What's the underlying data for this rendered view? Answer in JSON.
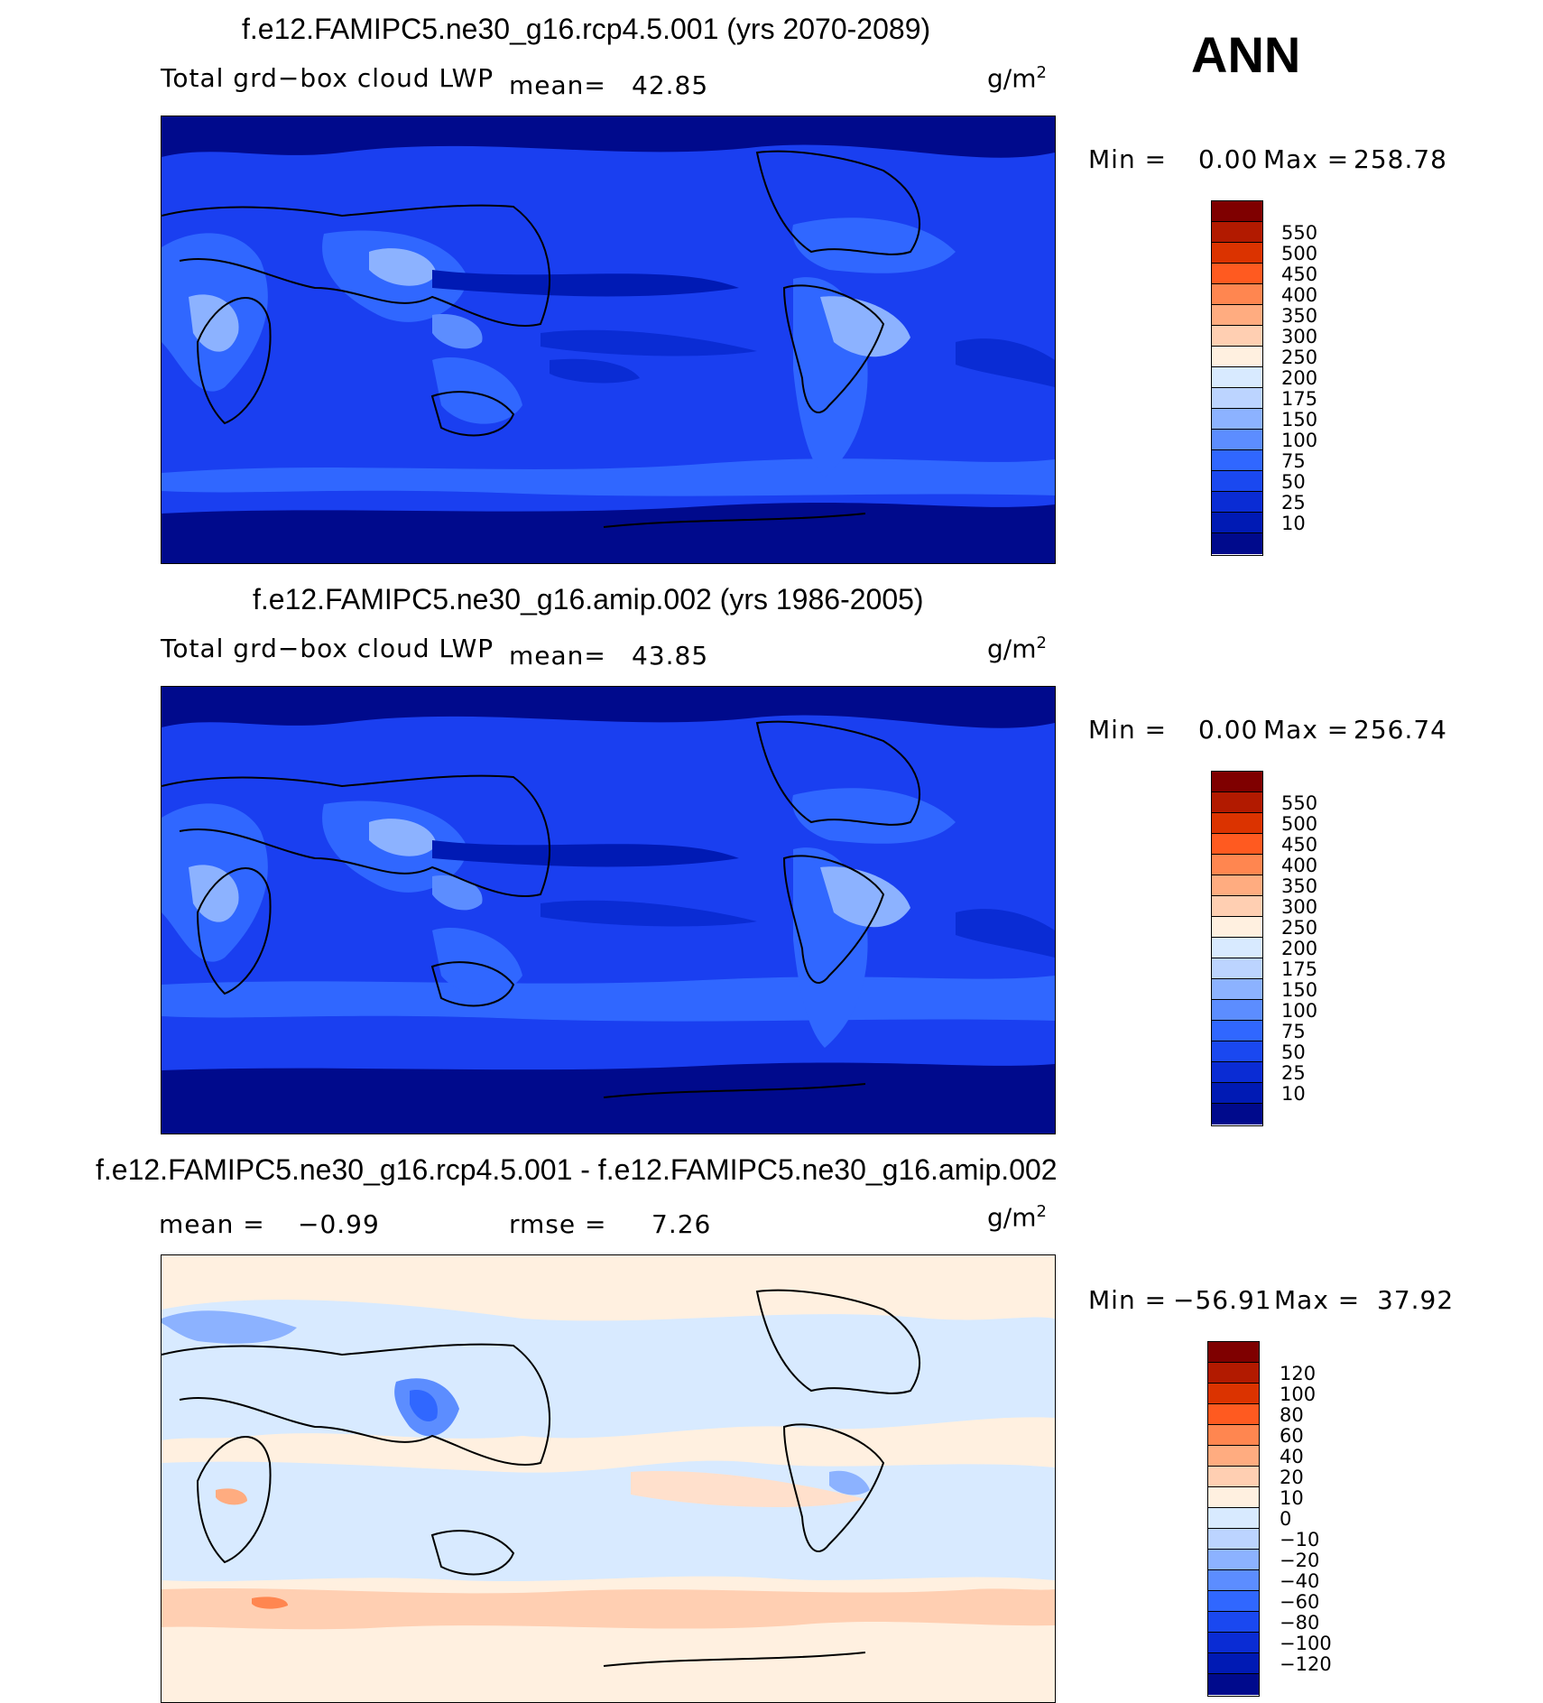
{
  "season": "ANN",
  "panels": [
    {
      "title": "f.e12.FAMIPC5.ne30_g16.rcp4.5.001 (yrs 2070-2089)",
      "variable": "Total grd−box cloud LWP",
      "stat1_label": "mean=",
      "stat1_value": "42.85",
      "stat2_label": "",
      "stat2_value": "",
      "unit": "g/m",
      "unit_exp": "2",
      "min_label": "Min =",
      "min_value": "0.00",
      "max_label": "Max =",
      "max_value": "258.78",
      "background": "#0000a0",
      "colorbar": {
        "colors": [
          "#7f0000",
          "#b21a00",
          "#db3300",
          "#ff5a20",
          "#ff8650",
          "#ffac80",
          "#ffcfb2",
          "#fff0e0",
          "#d8eaff",
          "#bcd4ff",
          "#8cb2ff",
          "#5c8dff",
          "#3067ff",
          "#1a48f0",
          "#0a2cd4",
          "#001ab4",
          "#000a8c"
        ],
        "labels": [
          "550",
          "500",
          "450",
          "400",
          "350",
          "300",
          "250",
          "200",
          "175",
          "150",
          "100",
          "75",
          "50",
          "25",
          "10"
        ]
      }
    },
    {
      "title": "f.e12.FAMIPC5.ne30_g16.amip.002 (yrs 1986-2005)",
      "variable": "Total grd−box cloud LWP",
      "stat1_label": "mean=",
      "stat1_value": "43.85",
      "stat2_label": "",
      "stat2_value": "",
      "unit": "g/m",
      "unit_exp": "2",
      "min_label": "Min =",
      "min_value": "0.00",
      "max_label": "Max =",
      "max_value": "256.74",
      "background": "#0000a0",
      "colorbar": {
        "colors": [
          "#7f0000",
          "#b21a00",
          "#db3300",
          "#ff5a20",
          "#ff8650",
          "#ffac80",
          "#ffcfb2",
          "#fff0e0",
          "#d8eaff",
          "#bcd4ff",
          "#8cb2ff",
          "#5c8dff",
          "#3067ff",
          "#1a48f0",
          "#0a2cd4",
          "#001ab4",
          "#000a8c"
        ],
        "labels": [
          "550",
          "500",
          "450",
          "400",
          "350",
          "300",
          "250",
          "200",
          "175",
          "150",
          "100",
          "75",
          "50",
          "25",
          "10"
        ]
      }
    },
    {
      "title": "f.e12.FAMIPC5.ne30_g16.rcp4.5.001 - f.e12.FAMIPC5.ne30_g16.amip.002",
      "variable": "",
      "stat1_label": "mean =",
      "stat1_value": "−0.99",
      "stat2_label": "rmse =",
      "stat2_value": "7.26",
      "unit": "g/m",
      "unit_exp": "2",
      "min_label": "Min =",
      "min_value": "−56.91",
      "max_label": "Max =",
      "max_value": "37.92",
      "background": "#ffe8da",
      "colorbar": {
        "colors": [
          "#7f0000",
          "#b21a00",
          "#db3300",
          "#ff5a20",
          "#ff8650",
          "#ffac80",
          "#ffcfb2",
          "#fff0e0",
          "#d8eaff",
          "#bcd4ff",
          "#8cb2ff",
          "#5c8dff",
          "#3067ff",
          "#1a48f0",
          "#0a2cd4",
          "#001ab4",
          "#000a8c"
        ],
        "labels": [
          "120",
          "100",
          "80",
          "60",
          "40",
          "20",
          "10",
          "0",
          "−10",
          "−20",
          "−40",
          "−60",
          "−80",
          "−100",
          "−120"
        ]
      }
    }
  ],
  "chart_data": [
    {
      "type": "heatmap",
      "title": "f.e12.FAMIPC5.ne30_g16.rcp4.5.001 (yrs 2070-2089)",
      "variable": "Total grd−box cloud LWP",
      "units": "g/m^2",
      "mean": 42.85,
      "min": 0.0,
      "max": 258.78,
      "contour_levels": [
        10,
        25,
        50,
        75,
        100,
        150,
        175,
        200,
        250,
        300,
        350,
        400,
        450,
        500,
        550
      ]
    },
    {
      "type": "heatmap",
      "title": "f.e12.FAMIPC5.ne30_g16.amip.002 (yrs 1986-2005)",
      "variable": "Total grd−box cloud LWP",
      "units": "g/m^2",
      "mean": 43.85,
      "min": 0.0,
      "max": 256.74,
      "contour_levels": [
        10,
        25,
        50,
        75,
        100,
        150,
        175,
        200,
        250,
        300,
        350,
        400,
        450,
        500,
        550
      ]
    },
    {
      "type": "heatmap",
      "title": "f.e12.FAMIPC5.ne30_g16.rcp4.5.001 - f.e12.FAMIPC5.ne30_g16.amip.002",
      "units": "g/m^2",
      "mean": -0.99,
      "rmse": 7.26,
      "min": -56.91,
      "max": 37.92,
      "contour_levels": [
        -120,
        -100,
        -80,
        -60,
        -40,
        -20,
        -10,
        0,
        10,
        20,
        40,
        60,
        80,
        100,
        120
      ]
    }
  ]
}
